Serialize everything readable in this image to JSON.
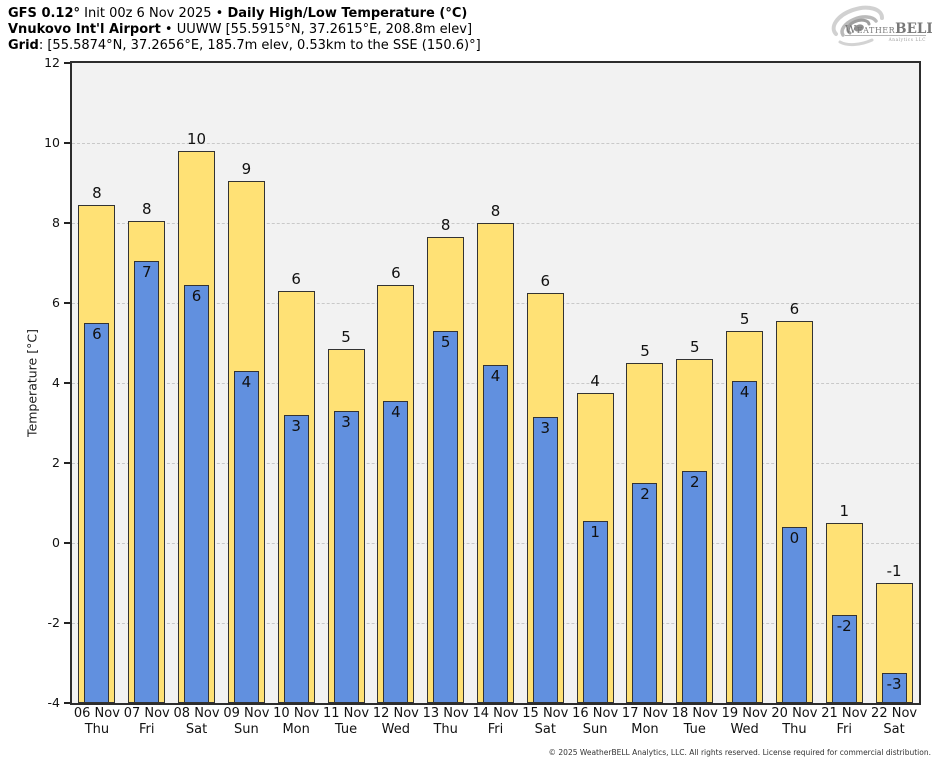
{
  "header": {
    "line1": {
      "bold1": "GFS 0.12°",
      "text1": " Init 00z 6 Nov 2025 • ",
      "bold2": "Daily High/Low Temperature (°C)"
    },
    "line2": {
      "bold1": "Vnukovo Int'l Airport",
      "text1": " • UUWW [55.5915°N, 37.2615°E, 208.8m elev]"
    },
    "line3": {
      "bold1": "Grid",
      "text1": ": [55.5874°N, 37.2656°E, 185.7m elev, 0.53km to the SSE (150.6)°]"
    }
  },
  "logo": {
    "name_part1": "Weather",
    "name_part2": "BELL",
    "subtitle": "Analytics LLC"
  },
  "chart_data": {
    "type": "bar",
    "title": "GFS 0.12° Init 00z 6 Nov 2025 • Daily High/Low Temperature (°C)",
    "subtitle": "Vnukovo Int'l Airport • UUWW",
    "ylabel": "Temperature [°C]",
    "xlabel": "",
    "ylim": [
      -4,
      12
    ],
    "yticks": [
      12,
      10,
      8,
      6,
      4,
      2,
      0,
      -2,
      -4
    ],
    "gridlines": [
      10,
      8,
      6,
      4,
      2,
      0,
      -2
    ],
    "grid": "horizontal dashed",
    "baseline": -4,
    "legend_position": "none",
    "categories": [
      {
        "date": "06 Nov",
        "day": "Thu"
      },
      {
        "date": "07 Nov",
        "day": "Fri"
      },
      {
        "date": "08 Nov",
        "day": "Sat"
      },
      {
        "date": "09 Nov",
        "day": "Sun"
      },
      {
        "date": "10 Nov",
        "day": "Mon"
      },
      {
        "date": "11 Nov",
        "day": "Tue"
      },
      {
        "date": "12 Nov",
        "day": "Wed"
      },
      {
        "date": "13 Nov",
        "day": "Thu"
      },
      {
        "date": "14 Nov",
        "day": "Fri"
      },
      {
        "date": "15 Nov",
        "day": "Sat"
      },
      {
        "date": "16 Nov",
        "day": "Sun"
      },
      {
        "date": "17 Nov",
        "day": "Mon"
      },
      {
        "date": "18 Nov",
        "day": "Tue"
      },
      {
        "date": "19 Nov",
        "day": "Wed"
      },
      {
        "date": "20 Nov",
        "day": "Thu"
      },
      {
        "date": "21 Nov",
        "day": "Fri"
      },
      {
        "date": "22 Nov",
        "day": "Sat"
      }
    ],
    "series": [
      {
        "name": "Daily High",
        "color": "#FFE175",
        "border_color": "#333333",
        "values": [
          8.45,
          8.05,
          9.8,
          9.05,
          6.3,
          4.85,
          6.45,
          7.65,
          8.0,
          6.25,
          3.75,
          4.5,
          4.6,
          5.3,
          5.55,
          0.5,
          -1.0
        ],
        "labels": [
          "8",
          "8",
          "10",
          "9",
          "6",
          "5",
          "6",
          "8",
          "8",
          "6",
          "4",
          "5",
          "5",
          "5",
          "6",
          "1",
          "-1"
        ]
      },
      {
        "name": "Daily Low",
        "color": "#6190DF",
        "border_color": "#333333",
        "values": [
          5.5,
          7.05,
          6.45,
          4.3,
          3.2,
          3.3,
          3.55,
          5.3,
          4.45,
          3.15,
          0.55,
          1.5,
          1.8,
          4.05,
          0.4,
          -1.8,
          -3.25
        ],
        "labels": [
          "6",
          "7",
          "6",
          "4",
          "3",
          "3",
          "4",
          "5",
          "4",
          "3",
          "1",
          "2",
          "2",
          "4",
          "0",
          "-2",
          "-3"
        ]
      }
    ],
    "plot_bg": "#F2F2F2",
    "grid_color": "#C9C9C9",
    "axis_color": "#2D2D2D"
  },
  "footer": {
    "copyright": "© 2025 WeatherBELL Analytics, LLC. All rights reserved. License required for commercial distribution."
  }
}
